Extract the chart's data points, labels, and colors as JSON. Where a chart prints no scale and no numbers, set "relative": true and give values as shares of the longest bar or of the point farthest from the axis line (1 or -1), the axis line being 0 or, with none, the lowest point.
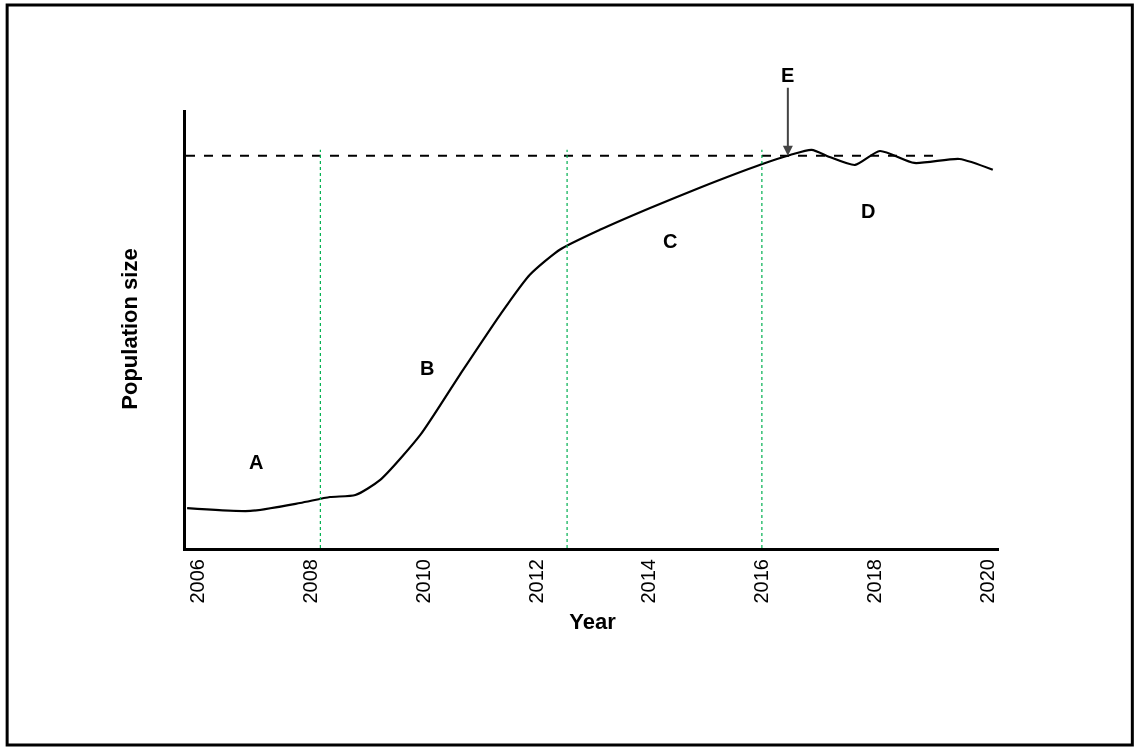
{
  "chart_data": {
    "type": "line",
    "relative": true,
    "xlabel": "Year",
    "ylabel": "Population size",
    "x": [
      2005.82,
      2006.94,
      2007.82,
      2008.35,
      2008.8,
      2009.24,
      2009.95,
      2010.65,
      2011.36,
      2011.89,
      2012.42,
      2013.13,
      2014.02,
      2014.9,
      2015.96,
      2016.5,
      2016.88,
      2017.2,
      2017.65,
      2018.09,
      2018.7,
      2019.5,
      2020.09
    ],
    "series": [
      {
        "color": "#000000",
        "values": [
          0.1,
          0.093,
          0.113,
          0.128,
          0.133,
          0.171,
          0.284,
          0.435,
          0.585,
          0.686,
          0.749,
          0.799,
          0.854,
          0.905,
          0.962,
          0.987,
          1,
          0.982,
          0.962,
          0.997,
          0.967,
          0.977,
          0.95
        ]
      }
    ],
    "xlim": [
      2005.8,
      2020.2
    ],
    "xticks": [
      2006,
      2008,
      2010,
      2012,
      2014,
      2016,
      2018,
      2020
    ],
    "tick_labels": "x",
    "grid": false,
    "marker": "none",
    "line_style": "solid",
    "ref_lines": [
      {
        "axis": "y",
        "value": 0.985,
        "color": "#000000",
        "line_style": "dashed"
      },
      {
        "axis": "x",
        "value": 2008.18,
        "color": "#00b050",
        "line_style": "dotted"
      },
      {
        "axis": "x",
        "value": 2012.55,
        "color": "#00b050",
        "line_style": "dotted"
      },
      {
        "axis": "x",
        "value": 2016.0,
        "color": "#00b050",
        "line_style": "dotted"
      }
    ],
    "annotations": [
      "A",
      "B",
      "C",
      "D",
      {
        "text": "E",
        "x": 2016.46,
        "y": 0.985
      }
    ]
  }
}
